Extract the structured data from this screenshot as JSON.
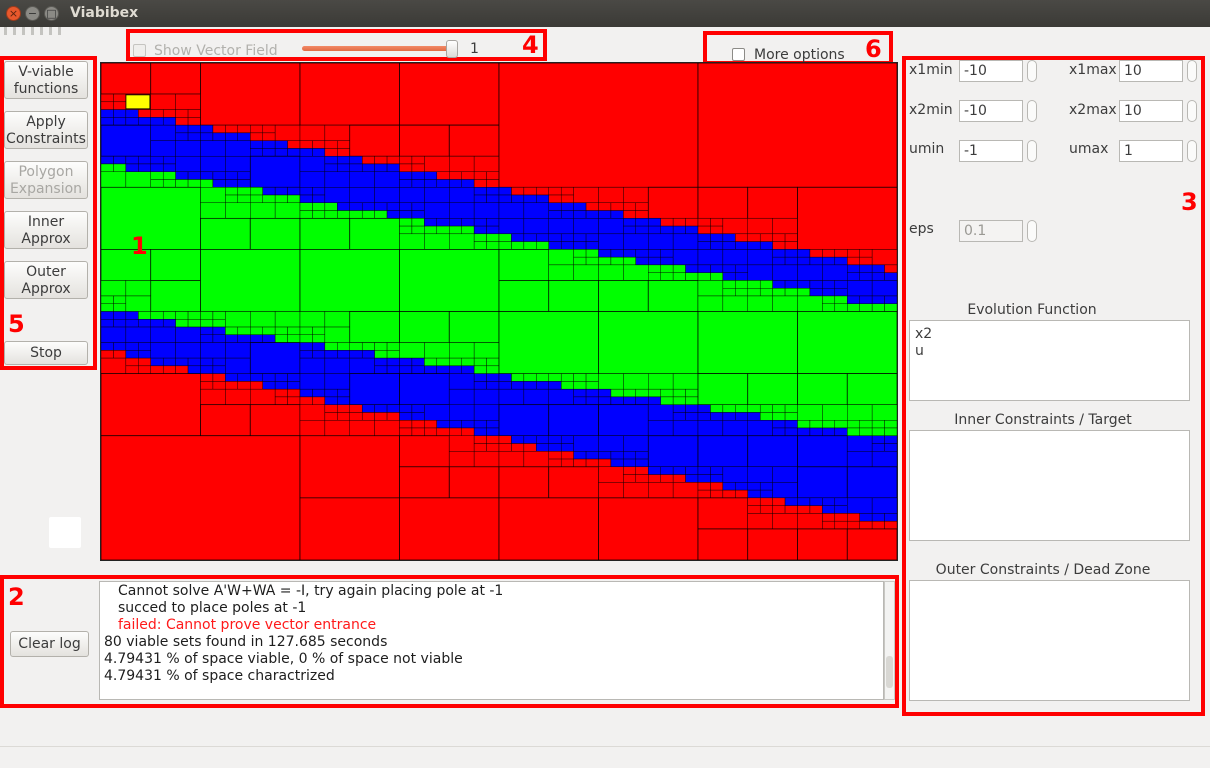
{
  "window": {
    "title": "Viabibex",
    "close_glyph": "×",
    "minimize_glyph": "−",
    "maximize_glyph": "□"
  },
  "annotations": [
    "1",
    "2",
    "3",
    "4",
    "5",
    "6"
  ],
  "toolbar": {
    "show_vector_field_label": "Show Vector Field",
    "show_vector_field_checked": false,
    "show_vector_field_enabled": false,
    "vector_field_scale": "1",
    "vector_field_scale_fraction": 0.97,
    "more_options_label": "More options",
    "more_options_checked": false
  },
  "actions": {
    "v_viable_line1": "V-viable",
    "v_viable_line2": "functions",
    "apply_line1": "Apply",
    "apply_line2": "Constraints",
    "polygon_line1": "Polygon",
    "polygon_line2": "Expansion",
    "polygon_enabled": false,
    "inner_line1": "Inner",
    "inner_line2": "Approx",
    "outer_line1": "Outer",
    "outer_line2": "Approx",
    "stop": "Stop"
  },
  "params": {
    "x1min_label": "x1min",
    "x1min_value": "-10",
    "x1max_label": "x1max",
    "x1max_value": "10",
    "x2min_label": "x2min",
    "x2min_value": "-10",
    "x2max_label": "x2max",
    "x2max_value": "10",
    "umin_label": "umin",
    "umin_value": "-1",
    "umax_label": "umax",
    "umax_value": "1",
    "eps_label": "eps",
    "eps_value": "0.1",
    "eps_enabled": false
  },
  "functions": {
    "evolution_label": "Evolution Function",
    "evolution_text": "x2\nu",
    "inner_label": "Inner Constraints / Target",
    "inner_text": "",
    "outer_label": "Outer Constraints / Dead Zone",
    "outer_text": ""
  },
  "log": {
    "clear_label": "Clear log",
    "lines": [
      {
        "text": "Cannot solve A'W+WA = -I, try again placing pole at -1",
        "indent": true,
        "error": false
      },
      {
        "text": "succed to place poles at -1",
        "indent": true,
        "error": false
      },
      {
        "text": "failed: Cannot prove vector entrance",
        "indent": true,
        "error": true
      },
      {
        "text": "80 viable sets found in 127.685 seconds",
        "indent": false,
        "error": false
      },
      {
        "text": "4.79431 % of space viable, 0 % of space not viable",
        "indent": false,
        "error": false
      },
      {
        "text": "4.79431 % of space charactrized",
        "indent": false,
        "error": false
      }
    ]
  },
  "plot": {
    "colors": {
      "outside": "#ff0000",
      "boundary": "#0000ff",
      "viable": "#00ff00",
      "marker": "#ffff00",
      "grid": "#000000"
    }
  }
}
